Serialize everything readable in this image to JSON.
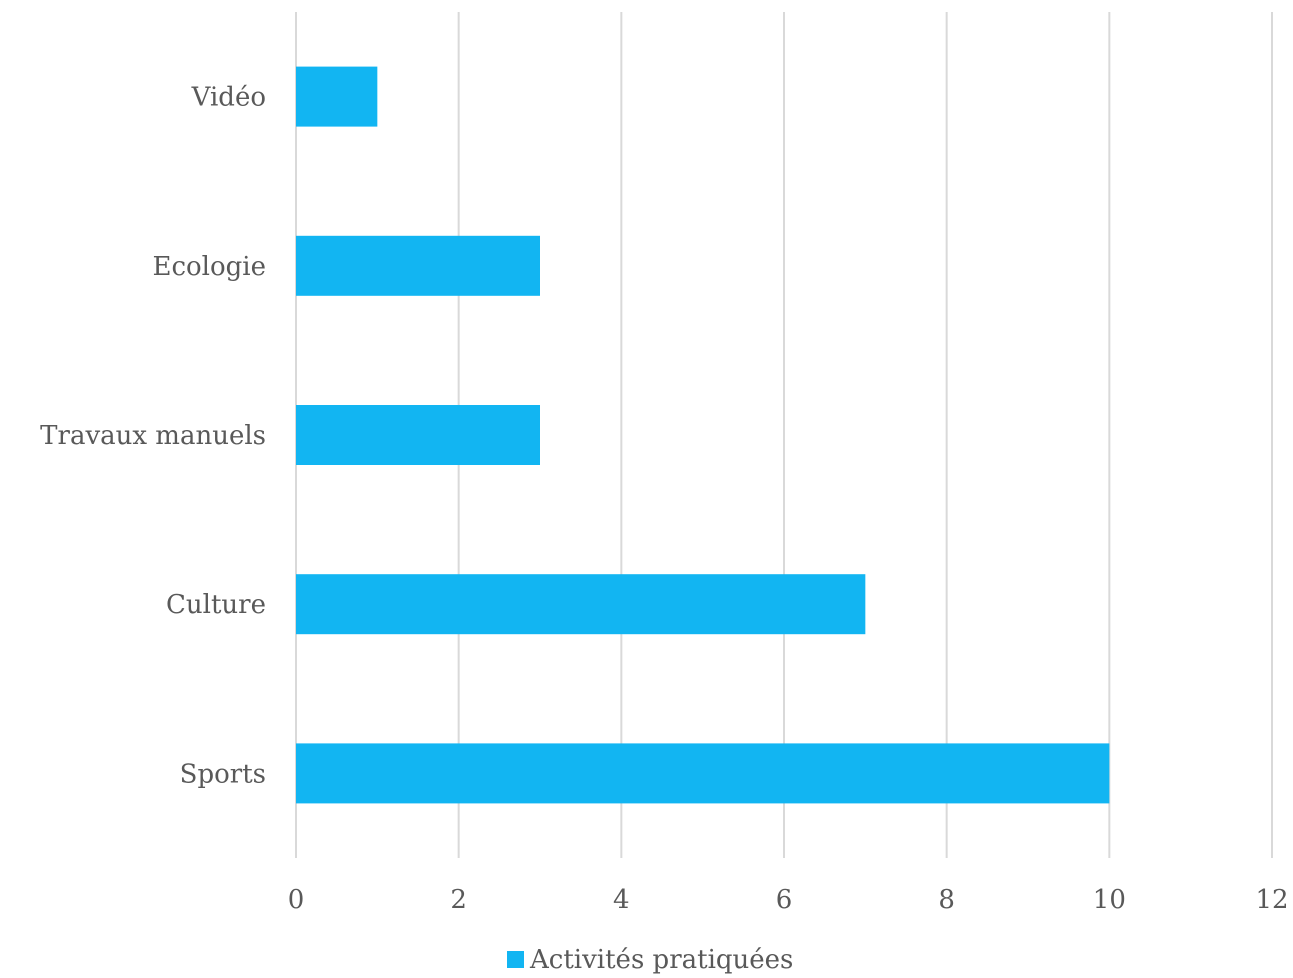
{
  "chart_data": {
    "type": "bar",
    "orientation": "horizontal",
    "categories": [
      "Sports",
      "Culture",
      "Travaux manuels",
      "Ecologie",
      "Vidéo"
    ],
    "series": [
      {
        "name": "Activités pratiquées",
        "values": [
          10,
          7,
          3,
          3,
          1
        ],
        "color": "#12b5f2"
      }
    ],
    "xlim": [
      0,
      12
    ],
    "x_ticks": [
      0,
      2,
      4,
      6,
      8,
      10,
      12
    ],
    "grid": "vertical",
    "legend": "bottom-center"
  }
}
